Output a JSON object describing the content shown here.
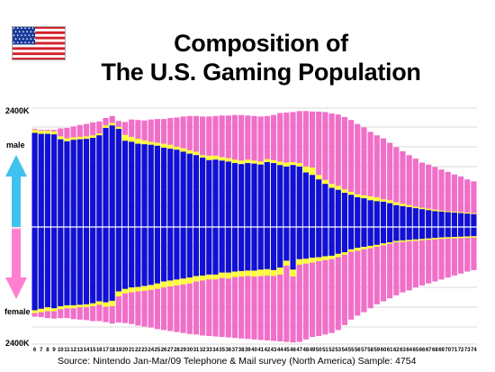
{
  "title_line1": "Composition of",
  "title_line2": "The U.S. Gaming Population",
  "flag": "us-flag",
  "labels": {
    "y_top": "2400K",
    "y_bottom": "2400K",
    "male": "male",
    "female": "female"
  },
  "source": "Source:  Nintendo Jan-Mar/09    Telephone & Mail survey (North America)   Sample:  4754",
  "colors": {
    "gamer": "#1010d8",
    "lapsed": "#ffff33",
    "non_gamer": "#f06fc8",
    "arrow_male": "#3fc3ee",
    "arrow_female": "#ff7fd0"
  },
  "chart_data": {
    "type": "bar",
    "subtype": "population-pyramid",
    "categories": [
      "6",
      "7",
      "8",
      "9",
      "10",
      "11",
      "12",
      "13",
      "14",
      "15",
      "16",
      "17",
      "18",
      "19",
      "20",
      "21",
      "22",
      "23",
      "24",
      "25",
      "26",
      "27",
      "28",
      "29",
      "30",
      "31",
      "32",
      "33",
      "34",
      "35",
      "36",
      "37",
      "38",
      "39",
      "40",
      "41",
      "42",
      "43",
      "44",
      "45",
      "46",
      "47",
      "48",
      "49",
      "50",
      "51",
      "52",
      "53",
      "54",
      "55",
      "56",
      "57",
      "58",
      "59",
      "60",
      "61",
      "62",
      "63",
      "64",
      "65",
      "66",
      "67",
      "68",
      "69",
      "70",
      "71",
      "72",
      "73",
      "74"
    ],
    "ylim": [
      -2400,
      2400
    ],
    "y_unit": "K",
    "male": {
      "blue": [
        1900,
        1880,
        1880,
        1870,
        1770,
        1730,
        1760,
        1770,
        1780,
        1800,
        1850,
        2000,
        2050,
        1980,
        1740,
        1720,
        1680,
        1670,
        1660,
        1640,
        1600,
        1580,
        1560,
        1520,
        1480,
        1450,
        1400,
        1350,
        1360,
        1340,
        1320,
        1290,
        1270,
        1290,
        1280,
        1260,
        1310,
        1290,
        1250,
        1220,
        1250,
        1220,
        1100,
        1050,
        960,
        870,
        790,
        750,
        690,
        650,
        600,
        580,
        540,
        520,
        510,
        480,
        440,
        420,
        400,
        380,
        360,
        340,
        320,
        310,
        300,
        290,
        280,
        270,
        260
      ],
      "yellow": [
        1960,
        1940,
        1940,
        1930,
        1830,
        1790,
        1810,
        1820,
        1830,
        1850,
        1890,
        2050,
        2100,
        2020,
        1860,
        1820,
        1780,
        1750,
        1720,
        1700,
        1680,
        1660,
        1620,
        1590,
        1550,
        1520,
        1450,
        1440,
        1440,
        1410,
        1390,
        1360,
        1340,
        1360,
        1340,
        1320,
        1370,
        1350,
        1320,
        1300,
        1310,
        1290,
        1220,
        1200,
        1050,
        950,
        870,
        830,
        760,
        710,
        660,
        640,
        620,
        600,
        560,
        540,
        500,
        470,
        440,
        410,
        390,
        370,
        350,
        330,
        320,
        310,
        300,
        290,
        280
      ],
      "pink": [
        1980,
        1960,
        1960,
        1960,
        1990,
        2000,
        2030,
        2060,
        2080,
        2110,
        2130,
        2200,
        2240,
        2140,
        2120,
        2170,
        2160,
        2150,
        2170,
        2180,
        2180,
        2200,
        2210,
        2230,
        2240,
        2240,
        2230,
        2230,
        2240,
        2250,
        2250,
        2260,
        2260,
        2250,
        2240,
        2230,
        2240,
        2260,
        2300,
        2310,
        2320,
        2340,
        2340,
        2330,
        2330,
        2320,
        2290,
        2270,
        2220,
        2160,
        2080,
        2010,
        1920,
        1850,
        1790,
        1700,
        1610,
        1530,
        1450,
        1380,
        1300,
        1260,
        1210,
        1160,
        1110,
        1060,
        1020,
        960,
        920
      ]
    },
    "female": {
      "blue": [
        1680,
        1650,
        1620,
        1640,
        1600,
        1580,
        1580,
        1570,
        1560,
        1540,
        1500,
        1520,
        1490,
        1300,
        1250,
        1220,
        1210,
        1190,
        1170,
        1140,
        1100,
        1080,
        1060,
        1040,
        1020,
        990,
        980,
        960,
        960,
        920,
        920,
        900,
        890,
        880,
        880,
        860,
        850,
        870,
        820,
        680,
        860,
        650,
        640,
        620,
        610,
        590,
        580,
        540,
        510,
        450,
        420,
        400,
        380,
        360,
        330,
        310,
        280,
        270,
        260,
        250,
        240,
        230,
        220,
        210,
        205,
        200,
        195,
        190,
        185
      ],
      "yellow": [
        1740,
        1720,
        1700,
        1700,
        1660,
        1640,
        1640,
        1620,
        1620,
        1600,
        1570,
        1610,
        1600,
        1400,
        1340,
        1320,
        1300,
        1290,
        1270,
        1250,
        1220,
        1200,
        1180,
        1160,
        1140,
        1100,
        1080,
        1060,
        1060,
        1030,
        1040,
        1010,
        1000,
        990,
        1000,
        990,
        980,
        990,
        960,
        780,
        1000,
        760,
        740,
        720,
        690,
        670,
        650,
        610,
        560,
        500,
        480,
        450,
        430,
        400,
        370,
        340,
        310,
        300,
        290,
        280,
        270,
        260,
        250,
        240,
        235,
        230,
        225,
        220,
        215
      ],
      "pink": [
        1810,
        1820,
        1840,
        1850,
        1840,
        1840,
        1860,
        1870,
        1880,
        1900,
        1900,
        1920,
        1950,
        1930,
        1940,
        1960,
        1990,
        2010,
        2030,
        2060,
        2080,
        2100,
        2120,
        2140,
        2160,
        2170,
        2190,
        2200,
        2210,
        2220,
        2230,
        2240,
        2250,
        2260,
        2270,
        2280,
        2290,
        2300,
        2310,
        2320,
        2330,
        2320,
        2270,
        2220,
        2200,
        2170,
        2140,
        2080,
        1980,
        1870,
        1790,
        1720,
        1640,
        1560,
        1500,
        1440,
        1380,
        1320,
        1280,
        1220,
        1180,
        1140,
        1100,
        1060,
        1020,
        980,
        940,
        900,
        870
      ]
    }
  }
}
